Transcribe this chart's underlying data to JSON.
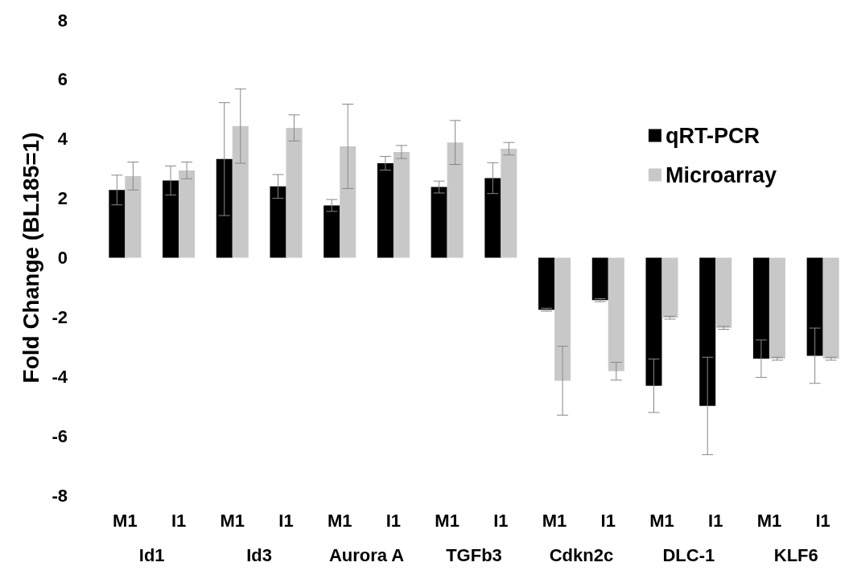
{
  "chart_data": {
    "type": "bar",
    "ylabel": "Fold Change (BL185=1)",
    "categories": [
      "M1",
      "I1",
      "M1",
      "I1",
      "M1",
      "I1",
      "M1",
      "I1",
      "M1",
      "I1",
      "M1",
      "I1",
      "M1",
      "I1"
    ],
    "series": [
      {
        "name": "qRT-PCR",
        "color": "#000000",
        "values": [
          2.28,
          2.6,
          3.32,
          2.4,
          1.76,
          3.18,
          2.38,
          2.68,
          -1.75,
          -1.43,
          -4.31,
          -4.99,
          -3.4,
          -3.3
        ],
        "errors": [
          0.5,
          0.49,
          1.9,
          0.4,
          0.2,
          0.23,
          0.2,
          0.52,
          0.05,
          0.05,
          0.9,
          1.64,
          0.63,
          0.93
        ]
      },
      {
        "name": "Microarray",
        "color": "#c8c8c8",
        "values": [
          2.75,
          2.94,
          4.43,
          4.37,
          3.75,
          3.56,
          3.88,
          3.67,
          -4.14,
          -3.82,
          -2.02,
          -2.36,
          -3.4,
          -3.4
        ],
        "errors": [
          0.47,
          0.28,
          1.25,
          0.44,
          1.42,
          0.22,
          0.74,
          0.21,
          1.16,
          0.3,
          0.05,
          0.05,
          0.05,
          0.05
        ]
      }
    ],
    "annotations": [
      "Id1",
      "Id3",
      "Aurora A",
      "TGFb3",
      "Cdkn2c",
      "DLC-1",
      "KLF6"
    ],
    "ylim": [
      -8,
      8
    ],
    "yticks": [
      -8,
      -6,
      -4,
      -2,
      0,
      2,
      4,
      6,
      8
    ],
    "grid": false,
    "legend": "right"
  }
}
